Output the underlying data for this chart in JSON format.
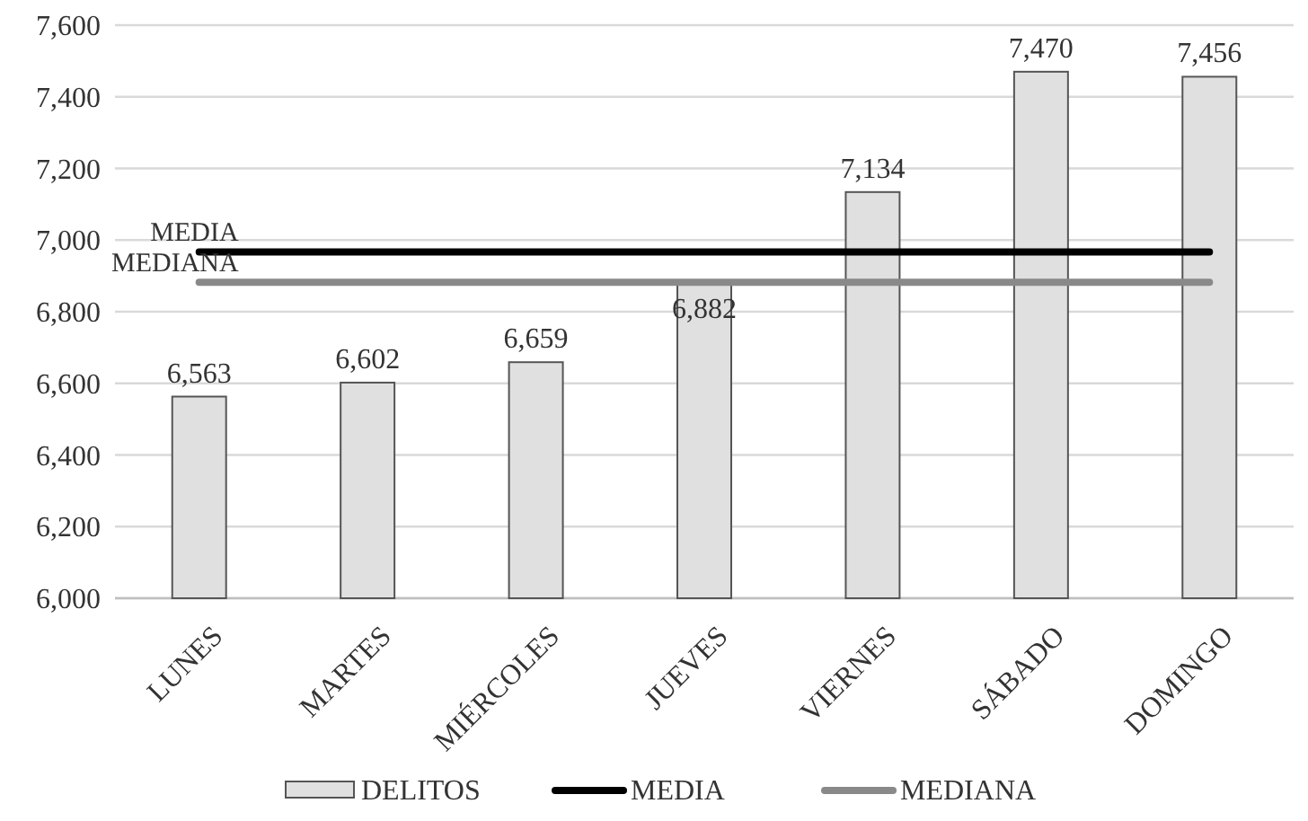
{
  "chart_data": {
    "type": "bar",
    "categories": [
      "LUNES",
      "MARTES",
      "MIÉRCOLES",
      "JUEVES",
      "VIERNES",
      "SÁBADO",
      "DOMINGO"
    ],
    "series": [
      {
        "name": "DELITOS",
        "color": "#e0e0e0",
        "values": [
          6563,
          6602,
          6659,
          6882,
          7134,
          7470,
          7456
        ],
        "value_labels": [
          "6,563",
          "6,602",
          "6,659",
          "6,882",
          "7,134",
          "7,470",
          "7,456"
        ]
      },
      {
        "name": "MEDIA",
        "type": "line",
        "color": "#000000",
        "values": [
          6967,
          6967,
          6967,
          6967,
          6967,
          6967,
          6967
        ]
      },
      {
        "name": "MEDIANA",
        "type": "line",
        "color": "#898989",
        "values": [
          6882,
          6882,
          6882,
          6882,
          6882,
          6882,
          6882
        ]
      }
    ],
    "ylim": [
      6000,
      7600
    ],
    "yticks": [
      {
        "value": 6000,
        "label": "6,000"
      },
      {
        "value": 6200,
        "label": "6,200"
      },
      {
        "value": 6400,
        "label": "6,400"
      },
      {
        "value": 6600,
        "label": "6,600"
      },
      {
        "value": 6800,
        "label": "6,800"
      },
      {
        "value": 7000,
        "label": "7,000"
      },
      {
        "value": 7200,
        "label": "7,200"
      },
      {
        "value": 7400,
        "label": "7,400"
      },
      {
        "value": 7600,
        "label": "7,600"
      }
    ],
    "grid": "y",
    "legend": "bottom",
    "marker": "none",
    "line_style": "solid"
  }
}
